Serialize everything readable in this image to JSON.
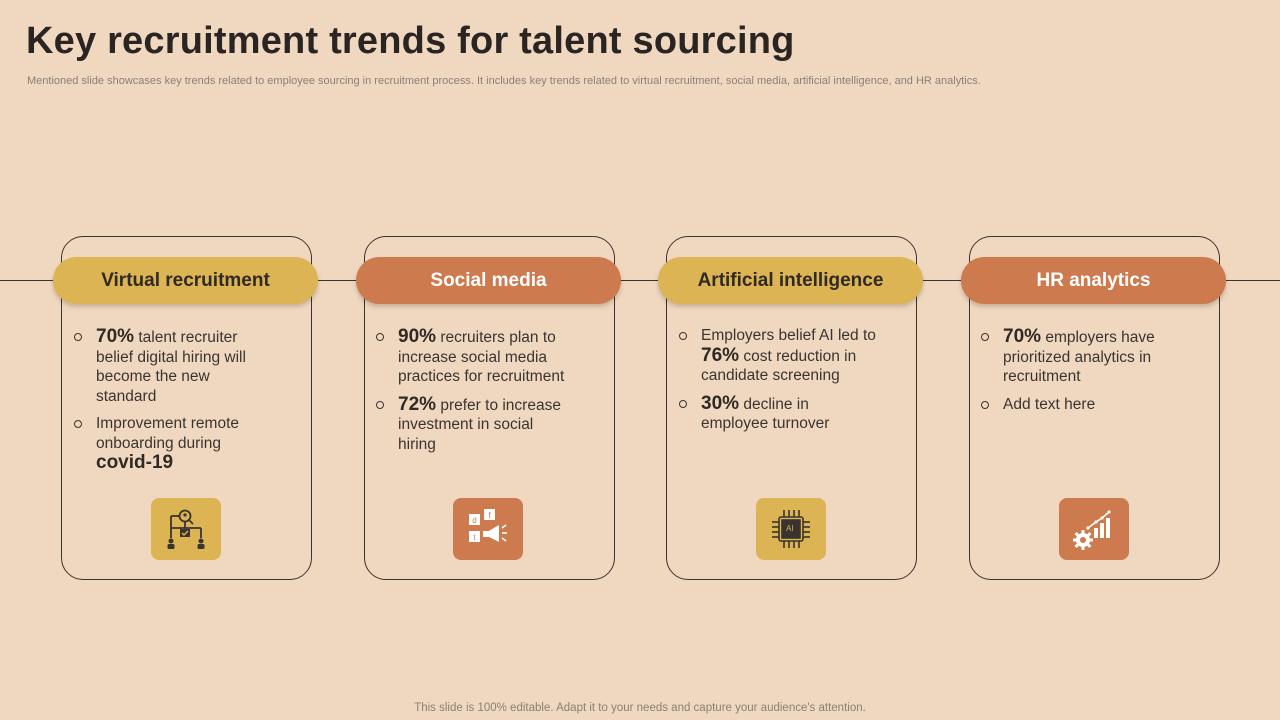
{
  "title": "Key recruitment trends for talent sourcing",
  "subtitle": "Mentioned slide showcases key trends related to employee sourcing in recruitment process. It includes key trends related to virtual recruitment, social media, artificial intelligence, and HR analytics.",
  "colors": {
    "background": "#f0d8c0",
    "yellow": "#dcb453",
    "orange": "#cd7a4f",
    "line": "#3a3430"
  },
  "cards": [
    {
      "heading": "Virtual recruitment",
      "icon": "org-chart-search-icon",
      "bullets": [
        {
          "stat": "70%",
          "text": " talent recruiter belief digital hiring will become the new standard"
        },
        {
          "pre": "Improvement  remote onboarding during ",
          "stat": "covid-19"
        }
      ]
    },
    {
      "heading": "Social media",
      "icon": "social-megaphone-icon",
      "bullets": [
        {
          "stat": "90%",
          "text": " recruiters plan to increase social media practices for recruitment"
        },
        {
          "stat": "72%",
          "text": " prefer to increase investment in social hiring"
        }
      ]
    },
    {
      "heading": "Artificial intelligence",
      "icon": "ai-chip-icon",
      "icon_label": "AI",
      "bullets": [
        {
          "pre": "Employers belief AI led to ",
          "stat": "76%",
          "text": " cost reduction in candidate screening"
        },
        {
          "stat": "30%",
          "text": " decline in employee turnover"
        }
      ]
    },
    {
      "heading": "HR analytics",
      "icon": "analytics-gear-icon",
      "bullets": [
        {
          "stat": "70%",
          "text": " employers have prioritized analytics in recruitment"
        },
        {
          "text": "Add text here"
        }
      ]
    }
  ],
  "footer": "This slide is 100% editable. Adapt it to your needs and capture your audience's attention."
}
